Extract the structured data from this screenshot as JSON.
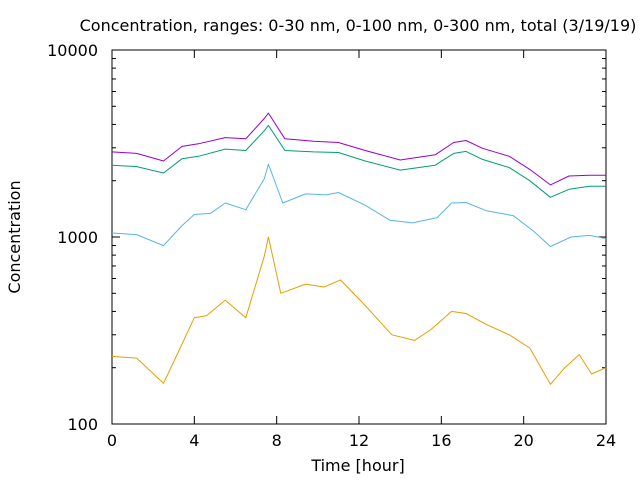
{
  "chart_data": {
    "type": "line",
    "title": "Concentration, ranges: 0-30 nm, 0-100 nm, 0-300 nm, total (3/19/19)",
    "xlabel": "Time [hour]",
    "ylabel": "Concentration",
    "xlim": [
      0,
      24
    ],
    "ylim": [
      100,
      10000
    ],
    "yscale": "log",
    "xticks": [
      0,
      4,
      8,
      12,
      16,
      20,
      24
    ],
    "xtick_labels": [
      "0",
      "4",
      "8",
      "12",
      "16",
      "20",
      "24"
    ],
    "yticks": [
      100,
      1000,
      10000
    ],
    "ytick_labels": [
      "100",
      "1000",
      "10000"
    ],
    "grid": false,
    "legend": "none",
    "series": [
      {
        "color": "#e69f00",
        "x": [
          0,
          1.2,
          2.5,
          3.2,
          4,
          4.6,
          5.5,
          6.5,
          7.4,
          7.6,
          8.2,
          9.4,
          10.3,
          11.1,
          12.3,
          13.6,
          14.7,
          15.5,
          16.5,
          17.2,
          18.2,
          19.3,
          20.3,
          21.3,
          22.0,
          22.7,
          23.3,
          24
        ],
        "y": [
          230,
          225,
          165,
          240,
          370,
          380,
          460,
          370,
          790,
          1000,
          500,
          560,
          540,
          590,
          430,
          300,
          280,
          320,
          400,
          390,
          340,
          300,
          255,
          163,
          200,
          235,
          185,
          200
        ]
      },
      {
        "color": "#56b4e9",
        "x": [
          0,
          1.2,
          2.5,
          3.4,
          4,
          4.8,
          5.5,
          6.5,
          7.4,
          7.6,
          8.3,
          9.4,
          10.4,
          11.0,
          12.3,
          13.5,
          14.6,
          15.8,
          16.5,
          17.2,
          18.2,
          19.5,
          20.5,
          21.3,
          22.3,
          23.2,
          24
        ],
        "y": [
          1050,
          1030,
          900,
          1150,
          1320,
          1340,
          1520,
          1400,
          2050,
          2450,
          1520,
          1700,
          1680,
          1730,
          1480,
          1230,
          1190,
          1270,
          1520,
          1530,
          1380,
          1300,
          1070,
          890,
          1000,
          1020,
          980
        ]
      },
      {
        "color": "#009e73",
        "x": [
          0,
          1.2,
          2.5,
          3.4,
          4.2,
          5.5,
          6.5,
          7.4,
          7.6,
          8.4,
          9.8,
          11.0,
          12.3,
          14.0,
          15.7,
          16.6,
          17.2,
          18.0,
          19.3,
          20.3,
          21.3,
          22.2,
          23.2,
          24
        ],
        "y": [
          2420,
          2380,
          2200,
          2620,
          2700,
          2950,
          2900,
          3700,
          3950,
          2900,
          2850,
          2830,
          2550,
          2280,
          2420,
          2800,
          2870,
          2600,
          2350,
          2000,
          1630,
          1800,
          1870,
          1870
        ]
      },
      {
        "color": "#9400d3",
        "x": [
          0,
          1.2,
          2.5,
          3.4,
          4.2,
          5.5,
          6.5,
          7.4,
          7.6,
          8.4,
          9.8,
          11.0,
          12.3,
          14.0,
          15.7,
          16.6,
          17.2,
          18.0,
          19.3,
          20.3,
          21.3,
          22.2,
          23.2,
          24
        ],
        "y": [
          2850,
          2800,
          2550,
          3050,
          3150,
          3400,
          3350,
          4300,
          4600,
          3350,
          3250,
          3200,
          2900,
          2580,
          2750,
          3200,
          3280,
          2980,
          2700,
          2300,
          1900,
          2120,
          2140,
          2140
        ]
      }
    ]
  }
}
